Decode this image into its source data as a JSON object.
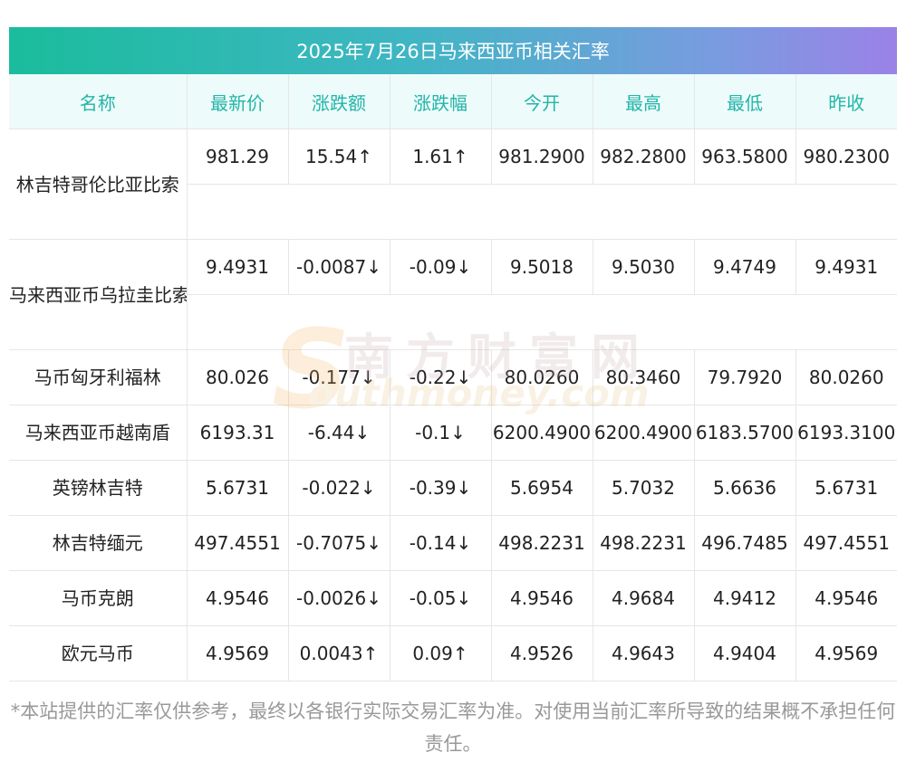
{
  "title": "2025年7月26日马来西亚币相关汇率",
  "headers": [
    "名称",
    "最新价",
    "涨跌额",
    "涨跌幅",
    "今开",
    "最高",
    "最低",
    "昨收"
  ],
  "rows": [
    {
      "name": "林吉特哥伦比亚比索",
      "latest": "981.29",
      "change": "15.54↑",
      "pct": "1.61↑",
      "open": "981.2900",
      "high": "982.2800",
      "low": "963.5800",
      "prev": "980.2300",
      "dir": "up"
    },
    {
      "name": "马来西亚币乌拉圭比索",
      "latest": "9.4931",
      "change": "-0.0087↓",
      "pct": "-0.09↓",
      "open": "9.5018",
      "high": "9.5030",
      "low": "9.4749",
      "prev": "9.4931",
      "dir": "down"
    },
    {
      "name": "马币匈牙利福林",
      "latest": "80.026",
      "change": "-0.177↓",
      "pct": "-0.22↓",
      "open": "80.0260",
      "high": "80.3460",
      "low": "79.7920",
      "prev": "80.0260",
      "dir": "down"
    },
    {
      "name": "马来西亚币越南盾",
      "latest": "6193.31",
      "change": "-6.44↓",
      "pct": "-0.1↓",
      "open": "6200.4900",
      "high": "6200.4900",
      "low": "6183.5700",
      "prev": "6193.3100",
      "dir": "down"
    },
    {
      "name": "英镑林吉特",
      "latest": "5.6731",
      "change": "-0.022↓",
      "pct": "-0.39↓",
      "open": "5.6954",
      "high": "5.7032",
      "low": "5.6636",
      "prev": "5.6731",
      "dir": "down"
    },
    {
      "name": "林吉特缅元",
      "latest": "497.4551",
      "change": "-0.7075↓",
      "pct": "-0.14↓",
      "open": "498.2231",
      "high": "498.2231",
      "low": "496.7485",
      "prev": "497.4551",
      "dir": "down"
    },
    {
      "name": "马币克朗",
      "latest": "4.9546",
      "change": "-0.0026↓",
      "pct": "-0.05↓",
      "open": "4.9546",
      "high": "4.9684",
      "low": "4.9412",
      "prev": "4.9546",
      "dir": "down"
    },
    {
      "name": "欧元马币",
      "latest": "4.9569",
      "change": "0.0043↑",
      "pct": "0.09↑",
      "open": "4.9526",
      "high": "4.9643",
      "low": "4.9404",
      "prev": "4.9569",
      "dir": "up"
    }
  ],
  "watermark": {
    "cn": "南方财富网",
    "en": "outhmoney.com",
    "s": "S"
  },
  "disclaimer": "*本站提供的汇率仅供参考，最终以各银行实际交易汇率为准。对使用当前汇率所导致的结果概不承担任何责任。",
  "colors": {
    "up": "#f5161c",
    "down": "#1e8a1e",
    "header_text": "#22b5a8",
    "gradient_start": "#1abc9c",
    "gradient_end": "#9b82e6"
  }
}
